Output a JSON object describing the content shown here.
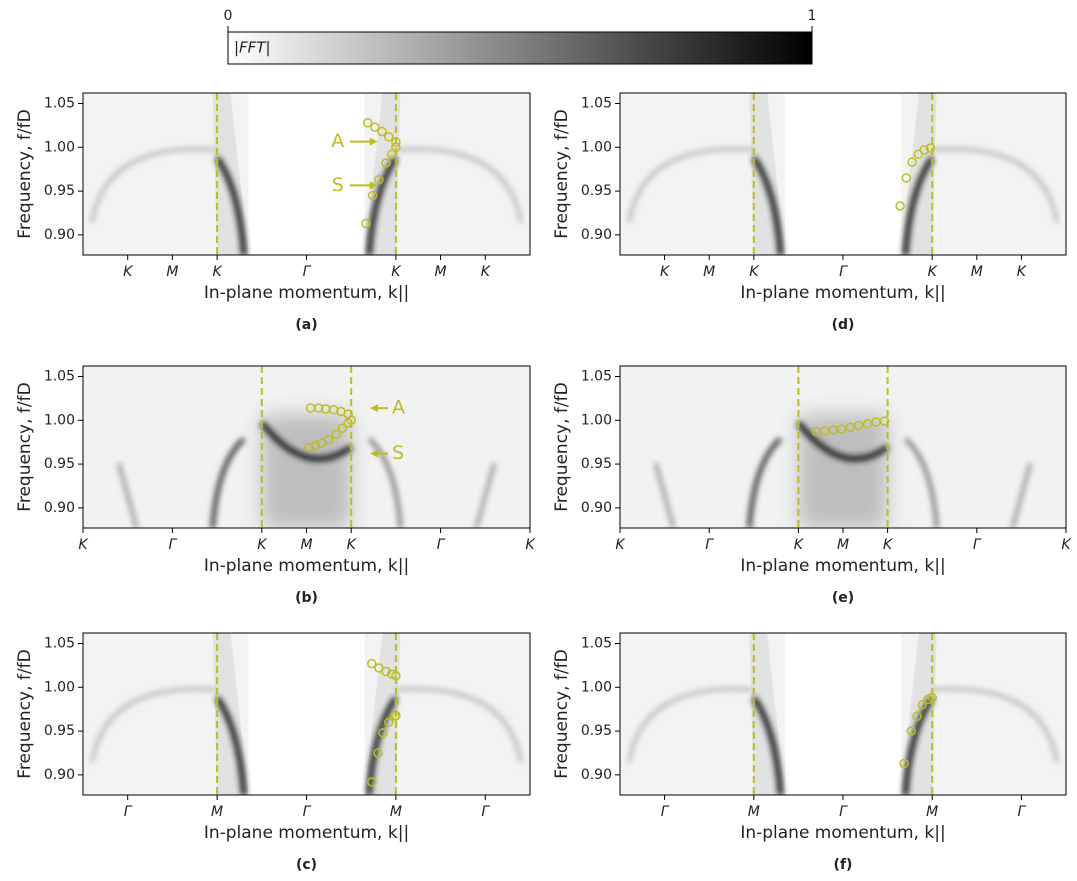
{
  "colorbar": {
    "label": "|FFT|",
    "ticks": [
      0,
      1
    ]
  },
  "chart_data": [
    {
      "type": "scatter",
      "panel_label": "(a)",
      "xlabel": "In-plane momentum, k||",
      "ylabel": "Frequency, f/fD",
      "xlim": [
        -5,
        5
      ],
      "xticks": [
        {
          "value": -4,
          "label": "K"
        },
        {
          "value": -3,
          "label": "M"
        },
        {
          "value": -2,
          "label": "K"
        },
        {
          "value": 0,
          "label": "Γ"
        },
        {
          "value": 2,
          "label": "K"
        },
        {
          "value": 3,
          "label": "M"
        },
        {
          "value": 4,
          "label": "K"
        }
      ],
      "ylim": [
        0.877,
        1.062
      ],
      "yticks": [
        {
          "value": 0.9,
          "label": "0.90"
        },
        0.95,
        {
          "value": 1.0,
          "label": "1.00"
        },
        1.05
      ],
      "vlines": [
        -2,
        2
      ],
      "annotations": [
        "A",
        "S"
      ],
      "series": [
        {
          "color": "#bcbd22",
          "x": [
            1.37,
            1.53,
            1.69,
            1.84,
            2.0
          ],
          "values": [
            1.028,
            1.023,
            1.018,
            1.012,
            1.006
          ]
        },
        {
          "color": "#bcbd22",
          "x": [
            1.33,
            1.48,
            1.62,
            1.78,
            1.91,
            2.0
          ],
          "values": [
            0.913,
            0.945,
            0.963,
            0.982,
            0.992,
            1.0
          ]
        }
      ]
    },
    {
      "type": "scatter",
      "panel_label": "(b)",
      "xlabel": "In-plane momentum, k||",
      "ylabel": "Frequency, f/fD",
      "xlim": [
        -5,
        5
      ],
      "xticks": [
        {
          "value": -5,
          "label": "K"
        },
        {
          "value": -3,
          "label": "Γ"
        },
        {
          "value": -1,
          "label": "K"
        },
        {
          "value": 0,
          "label": "M"
        },
        {
          "value": 1,
          "label": "K"
        },
        {
          "value": 3,
          "label": "Γ"
        },
        {
          "value": 5,
          "label": "K"
        }
      ],
      "ylim": [
        0.877,
        1.062
      ],
      "yticks": [
        {
          "value": 0.9,
          "label": "0.90"
        },
        0.95,
        {
          "value": 1.0,
          "label": "1.00"
        },
        1.05
      ],
      "vlines": [
        -1,
        1
      ],
      "annotations": [
        "A",
        "S"
      ],
      "series": [
        {
          "color": "#bcbd22",
          "x": [
            0.09,
            0.27,
            0.43,
            0.61,
            0.77,
            0.93,
            1.0
          ],
          "values": [
            1.014,
            1.014,
            1.013,
            1.012,
            1.01,
            1.007,
            1.0
          ]
        },
        {
          "color": "#bcbd22",
          "x": [
            0.05,
            0.2,
            0.34,
            0.5,
            0.66,
            0.8,
            0.93
          ],
          "values": [
            0.969,
            0.971,
            0.974,
            0.978,
            0.984,
            0.991,
            0.997
          ]
        }
      ]
    },
    {
      "type": "scatter",
      "panel_label": "(c)",
      "xlabel": "In-plane momentum, k||",
      "ylabel": "Frequency, f/fD",
      "xlim": [
        -5,
        5
      ],
      "xticks": [
        {
          "value": -4,
          "label": "Γ"
        },
        {
          "value": -2,
          "label": "M"
        },
        {
          "value": 0,
          "label": "Γ"
        },
        {
          "value": 2,
          "label": "M"
        },
        {
          "value": 4,
          "label": "Γ"
        }
      ],
      "ylim": [
        0.877,
        1.062
      ],
      "yticks": [
        {
          "value": 0.9,
          "label": "0.90"
        },
        0.95,
        {
          "value": 1.0,
          "label": "1.00"
        },
        1.05
      ],
      "vlines": [
        -2,
        2
      ],
      "series": [
        {
          "color": "#bcbd22",
          "x": [
            1.46,
            1.62,
            1.78,
            1.91,
            2.0
          ],
          "values": [
            1.027,
            1.022,
            1.018,
            1.015,
            1.013
          ]
        },
        {
          "color": "#bcbd22",
          "x": [
            1.46,
            1.6,
            1.71,
            1.84,
            1.98,
            2.0
          ],
          "values": [
            0.892,
            0.925,
            0.948,
            0.96,
            0.967,
            0.968
          ]
        }
      ]
    },
    {
      "type": "scatter",
      "panel_label": "(d)",
      "xlabel": "In-plane momentum, k||",
      "ylabel": "Frequency, f/fD",
      "xlim": [
        -5,
        5
      ],
      "xticks": [
        {
          "value": -4,
          "label": "K"
        },
        {
          "value": -3,
          "label": "M"
        },
        {
          "value": -2,
          "label": "K"
        },
        {
          "value": 0,
          "label": "Γ"
        },
        {
          "value": 2,
          "label": "K"
        },
        {
          "value": 3,
          "label": "M"
        },
        {
          "value": 4,
          "label": "K"
        }
      ],
      "ylim": [
        0.877,
        1.062
      ],
      "yticks": [
        {
          "value": 0.9,
          "label": "0.90"
        },
        0.95,
        {
          "value": 1.0,
          "label": "1.00"
        },
        1.05
      ],
      "vlines": [
        -2,
        2
      ],
      "series": [
        {
          "color": "#bcbd22",
          "x": [
            1.28,
            1.42,
            1.55,
            1.69,
            1.82,
            1.96
          ],
          "values": [
            0.933,
            0.965,
            0.983,
            0.992,
            0.997,
            0.999
          ]
        }
      ]
    },
    {
      "type": "scatter",
      "panel_label": "(e)",
      "xlabel": "In-plane momentum, k||",
      "ylabel": "Frequency, f/fD",
      "xlim": [
        -5,
        5
      ],
      "xticks": [
        {
          "value": -5,
          "label": "K"
        },
        {
          "value": -3,
          "label": "Γ"
        },
        {
          "value": -1,
          "label": "K"
        },
        {
          "value": 0,
          "label": "M"
        },
        {
          "value": 1,
          "label": "K"
        },
        {
          "value": 3,
          "label": "Γ"
        },
        {
          "value": 5,
          "label": "K"
        }
      ],
      "ylim": [
        0.877,
        1.062
      ],
      "yticks": [
        {
          "value": 0.9,
          "label": "0.90"
        },
        0.95,
        {
          "value": 1.0,
          "label": "1.00"
        },
        1.05
      ],
      "vlines": [
        -1,
        1
      ],
      "series": [
        {
          "color": "#bcbd22",
          "x": [
            -0.6,
            -0.41,
            -0.22,
            -0.03,
            0.16,
            0.35,
            0.55,
            0.74,
            0.93
          ],
          "values": [
            0.987,
            0.988,
            0.989,
            0.99,
            0.992,
            0.994,
            0.996,
            0.998,
            0.999
          ]
        }
      ]
    },
    {
      "type": "scatter",
      "panel_label": "(f)",
      "xlabel": "In-plane momentum, k||",
      "ylabel": "Frequency, f/fD",
      "xlim": [
        -5,
        5
      ],
      "xticks": [
        {
          "value": -4,
          "label": "Γ"
        },
        {
          "value": -2,
          "label": "M"
        },
        {
          "value": 0,
          "label": "Γ"
        },
        {
          "value": 2,
          "label": "M"
        },
        {
          "value": 4,
          "label": "Γ"
        }
      ],
      "ylim": [
        0.877,
        1.062
      ],
      "yticks": [
        {
          "value": 0.9,
          "label": "0.90"
        },
        0.95,
        {
          "value": 1.0,
          "label": "1.00"
        },
        1.05
      ],
      "vlines": [
        -2,
        2
      ],
      "series": [
        {
          "color": "#bcbd22",
          "x": [
            1.37,
            1.53,
            1.66,
            1.78,
            1.91,
            2.0
          ],
          "values": [
            0.913,
            0.95,
            0.967,
            0.98,
            0.986,
            0.988
          ]
        }
      ]
    }
  ]
}
